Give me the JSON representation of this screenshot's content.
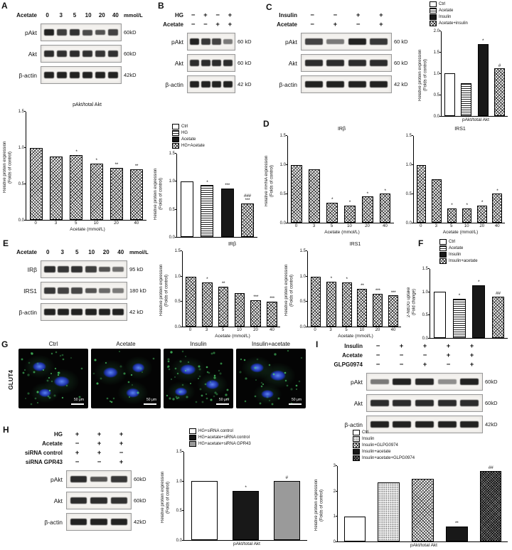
{
  "panels": {
    "a": {
      "label": "A"
    },
    "b": {
      "label": "B"
    },
    "c": {
      "label": "C"
    },
    "d": {
      "label": "D"
    },
    "e": {
      "label": "E"
    },
    "f": {
      "label": "F"
    },
    "g": {
      "label": "G"
    },
    "h": {
      "label": "H"
    },
    "i": {
      "label": "I"
    }
  },
  "blots": {
    "a": {
      "treatment": {
        "label": "Acetate",
        "values": [
          "0",
          "3",
          "5",
          "10",
          "20",
          "40"
        ],
        "unit": "mmol/L"
      },
      "rows": [
        {
          "name": "pAkt",
          "kd": "60kD",
          "bands": [
            0.95,
            0.82,
            0.88,
            0.76,
            0.72,
            0.8
          ]
        },
        {
          "name": "Akt",
          "kd": "60kD",
          "bands": [
            0.9,
            0.88,
            0.9,
            0.88,
            0.86,
            0.88
          ]
        },
        {
          "name": "β-actin",
          "kd": "42kD",
          "bands": [
            0.95,
            0.95,
            0.95,
            0.95,
            0.95,
            0.95
          ]
        }
      ]
    },
    "b": {
      "conditions": [
        {
          "label": "HG",
          "values": [
            "−",
            "+",
            "−",
            "+"
          ]
        },
        {
          "label": "Acetate",
          "values": [
            "−",
            "−",
            "+",
            "+"
          ]
        }
      ],
      "rows": [
        {
          "name": "pAkt",
          "kd": "60 kD",
          "bands": [
            0.95,
            0.85,
            0.8,
            0.55
          ]
        },
        {
          "name": "Akt",
          "kd": "60 kD",
          "bands": [
            0.9,
            0.9,
            0.9,
            0.9
          ]
        },
        {
          "name": "β-actin",
          "kd": "42 kD",
          "bands": [
            0.95,
            0.95,
            0.95,
            0.95
          ]
        }
      ]
    },
    "c": {
      "conditions": [
        {
          "label": "Insulin",
          "values": [
            "−",
            "−",
            "+",
            "+"
          ]
        },
        {
          "label": "Acetate",
          "values": [
            "−",
            "+",
            "−",
            "+"
          ]
        }
      ],
      "rows": [
        {
          "name": "pAkt",
          "kd": "60 kD",
          "bands": [
            0.8,
            0.55,
            0.95,
            0.85
          ]
        },
        {
          "name": "Akt",
          "kd": "60 kD",
          "bands": [
            0.9,
            0.9,
            0.9,
            0.9
          ]
        },
        {
          "name": "β-actin",
          "kd": "42 kD",
          "bands": [
            0.95,
            0.95,
            0.95,
            0.95
          ]
        }
      ]
    },
    "e": {
      "treatment": {
        "label": "Acetate",
        "values": [
          "0",
          "3",
          "5",
          "10",
          "20",
          "40"
        ],
        "unit": "mmol/L"
      },
      "rows": [
        {
          "name": "IRβ",
          "kd": "95 kD",
          "bands": [
            0.9,
            0.85,
            0.88,
            0.82,
            0.72,
            0.6
          ]
        },
        {
          "name": "IRS1",
          "kd": "180 kD",
          "bands": [
            0.85,
            0.8,
            0.78,
            0.72,
            0.62,
            0.55
          ]
        },
        {
          "name": "β-actin",
          "kd": "42 kD",
          "bands": [
            0.95,
            0.95,
            0.95,
            0.95,
            0.95,
            0.95
          ]
        }
      ]
    },
    "h": {
      "conditions": [
        {
          "label": "HG",
          "values": [
            "+",
            "+",
            "+"
          ]
        },
        {
          "label": "Acetate",
          "values": [
            "−",
            "+",
            "+"
          ]
        },
        {
          "label": "siRNA control",
          "values": [
            "+",
            "+",
            "−"
          ]
        },
        {
          "label": "siRNA GPR43",
          "values": [
            "−",
            "−",
            "+"
          ]
        }
      ],
      "rows": [
        {
          "name": "pAkt",
          "kd": "60kD",
          "bands": [
            0.9,
            0.72,
            0.85
          ]
        },
        {
          "name": "Akt",
          "kd": "60kD",
          "bands": [
            0.9,
            0.9,
            0.88
          ]
        },
        {
          "name": "β-actin",
          "kd": "42kD",
          "bands": [
            0.95,
            0.95,
            0.95
          ]
        }
      ]
    },
    "i": {
      "conditions": [
        {
          "label": "Insulin",
          "values": [
            "−",
            "+",
            "+",
            "+",
            "+"
          ]
        },
        {
          "label": "Acetate",
          "values": [
            "−",
            "−",
            "−",
            "+",
            "+"
          ]
        },
        {
          "label": "GLPG0974",
          "values": [
            "−",
            "−",
            "+",
            "−",
            "+"
          ]
        }
      ],
      "rows": [
        {
          "name": "pAkt",
          "kd": "60kD",
          "bands": [
            0.55,
            0.95,
            0.92,
            0.45,
            0.95
          ]
        },
        {
          "name": "Akt",
          "kd": "60kD",
          "bands": [
            0.9,
            0.9,
            0.9,
            0.9,
            0.9
          ]
        },
        {
          "name": "β-actin",
          "kd": "42kD",
          "bands": [
            0.95,
            0.95,
            0.95,
            0.95,
            0.95
          ]
        }
      ]
    }
  },
  "microscopy": {
    "row_label": "GLUT4",
    "scale_label": "50 μm",
    "images": [
      {
        "label": "Ctrl"
      },
      {
        "label": "Acetate"
      },
      {
        "label": "Insulin"
      },
      {
        "label": "Insulin+acetate"
      }
    ]
  },
  "chart_data": [
    {
      "id": "A",
      "type": "bar",
      "title": "pAkt/total Akt",
      "ylabel": "Relative protein expression\n(Folds of control)",
      "xlabel": "Acetate (mmol/L)",
      "categories": [
        "0",
        "3",
        "5",
        "10",
        "20",
        "40"
      ],
      "values": [
        1.0,
        0.88,
        0.9,
        0.78,
        0.72,
        0.7
      ],
      "sig": [
        "",
        "",
        "*",
        "*",
        "**",
        "**"
      ],
      "ylim": [
        0,
        1.5
      ],
      "yticks": [
        "0.0",
        "0.5",
        "1.0",
        "1.5"
      ],
      "pattern": "check"
    },
    {
      "id": "B",
      "type": "bar",
      "ylabel": "Relative protein expression\n(Folds of control)",
      "categories": [
        "Ctrl",
        "HG",
        "Acetate",
        "HG+Acetate"
      ],
      "values": [
        1.0,
        0.93,
        0.87,
        0.6
      ],
      "sig": [
        "",
        "*",
        "***",
        "###\n***"
      ],
      "ylim": [
        0,
        1.5
      ],
      "yticks": [
        "0.0",
        "0.5",
        "1.0",
        "1.5"
      ],
      "patterns": [
        "white",
        "hstripe",
        "black",
        "check"
      ],
      "legend": [
        {
          "label": "Ctrl",
          "pattern": "white"
        },
        {
          "label": "HG",
          "pattern": "hstripe"
        },
        {
          "label": "Acetate",
          "pattern": "black"
        },
        {
          "label": "HG+Acetate",
          "pattern": "check"
        }
      ],
      "show_xticks": false
    },
    {
      "id": "C",
      "type": "bar",
      "ylabel": "Relative protein expression\n(Folds of control)",
      "xlabel": "pAkt/total Akt",
      "categories": [
        "Ctrl",
        "Acetate",
        "Insulin",
        "Acetate+insulin"
      ],
      "values": [
        1.0,
        0.78,
        1.7,
        1.12
      ],
      "sig": [
        "",
        "",
        "*",
        "#"
      ],
      "ylim": [
        0,
        2
      ],
      "yticks": [
        "0.0",
        "0.5",
        "1.0",
        "1.5",
        "2.0"
      ],
      "patterns": [
        "white",
        "hstripe",
        "black",
        "check"
      ],
      "legend": [
        {
          "label": "Ctrl",
          "pattern": "white"
        },
        {
          "label": "Acetate",
          "pattern": "hstripe"
        },
        {
          "label": "Insulin",
          "pattern": "black"
        },
        {
          "label": "Acetate+insulin",
          "pattern": "check"
        }
      ],
      "show_xticks": false
    },
    {
      "id": "D1",
      "type": "bar",
      "title": "IRβ",
      "ylabel": "Relative mRNA expression\n(Folds of control)",
      "xlabel": "Acetate (mmol/L)",
      "categories": [
        "0",
        "3",
        "5",
        "10",
        "20",
        "40"
      ],
      "values": [
        1.0,
        0.93,
        0.35,
        0.3,
        0.45,
        0.5
      ],
      "sig": [
        "",
        "",
        "*",
        "*",
        "*",
        "*"
      ],
      "ylim": [
        0,
        1.5
      ],
      "yticks": [
        "0.0",
        "0.5",
        "1.0",
        "1.5"
      ],
      "pattern": "check"
    },
    {
      "id": "D2",
      "type": "bar",
      "title": "IRS1",
      "xlabel": "Acetate (mmol/L)",
      "categories": [
        "0",
        "3",
        "5",
        "10",
        "20",
        "40"
      ],
      "values": [
        1.0,
        0.75,
        0.25,
        0.25,
        0.3,
        0.5
      ],
      "sig": [
        "",
        "",
        "*",
        "*",
        "*",
        "*"
      ],
      "ylim": [
        0,
        1.5
      ],
      "yticks": [
        "0.0",
        "0.5",
        "1.0",
        "1.5"
      ],
      "pattern": "check"
    },
    {
      "id": "E1",
      "type": "bar",
      "title": "IRβ",
      "ylabel": "Relative protein expression\n(Folds of control)",
      "xlabel": "Acetate (mmol/L)",
      "categories": [
        "0",
        "3",
        "5",
        "10",
        "20",
        "40"
      ],
      "values": [
        1.0,
        0.88,
        0.8,
        0.66,
        0.52,
        0.5
      ],
      "sig": [
        "",
        "*",
        "**",
        "",
        "***",
        "***"
      ],
      "ylim": [
        0,
        1.5
      ],
      "yticks": [
        "0.0",
        "0.5",
        "1.0",
        "1.5"
      ],
      "pattern": "check"
    },
    {
      "id": "E2",
      "type": "bar",
      "title": "IRS1",
      "ylabel": "Relative protein expression\n(Folds of control)",
      "xlabel": "Acetate (mmol/L)",
      "categories": [
        "0",
        "3",
        "5",
        "10",
        "20",
        "40"
      ],
      "values": [
        1.0,
        0.9,
        0.88,
        0.75,
        0.65,
        0.62
      ],
      "sig": [
        "",
        "*",
        "*",
        "**",
        "***",
        "***"
      ],
      "ylim": [
        0,
        1.5
      ],
      "yticks": [
        "0.0",
        "0.5",
        "1.0",
        "1.5"
      ],
      "pattern": "check"
    },
    {
      "id": "F",
      "type": "bar",
      "ylabel": "2-NBDG uptake\n(Fold change)",
      "categories": [
        "Ctrl",
        "Acetate",
        "Insulin",
        "Insulin+acetate"
      ],
      "values": [
        1.0,
        0.85,
        1.15,
        0.9
      ],
      "sig": [
        "",
        "*",
        "*",
        "##"
      ],
      "ylim": [
        0,
        1.5
      ],
      "yticks": [
        "0.0",
        "0.5",
        "1.0",
        "1.5"
      ],
      "patterns": [
        "white",
        "hstripe",
        "black",
        "check"
      ],
      "legend": [
        {
          "label": "Ctrl",
          "pattern": "white"
        },
        {
          "label": "Acetate",
          "pattern": "hstripe"
        },
        {
          "label": "Insulin",
          "pattern": "black"
        },
        {
          "label": "Insulin+acetate",
          "pattern": "check"
        }
      ],
      "show_xticks": false
    },
    {
      "id": "H",
      "type": "bar",
      "ylabel": "Relative protein expression\n(Folds of control)",
      "xlabel": "pAkt/total Akt",
      "categories": [
        "HG+siRNA control",
        "HG+acetate+siRNA control",
        "HG+acetate+siRNA GPR43"
      ],
      "values": [
        1.0,
        0.84,
        1.0
      ],
      "sig": [
        "",
        "*",
        "#"
      ],
      "ylim": [
        0,
        1.5
      ],
      "yticks": [
        "0.0",
        "0.5",
        "1.0",
        "1.5"
      ],
      "patterns": [
        "white",
        "black",
        "gray"
      ],
      "legend": [
        {
          "label": "HG+siRNA control",
          "pattern": "white"
        },
        {
          "label": "HG+acetate+siRNA control",
          "pattern": "black"
        },
        {
          "label": "HG+acetate+siRNA GPR43",
          "pattern": "gray"
        }
      ],
      "show_xticks": false
    },
    {
      "id": "I",
      "type": "bar",
      "ylabel": "Relative protein expression\n(Folds of control)",
      "xlabel": "pAkt/total Akt",
      "categories": [
        "Ctrl",
        "Insulin",
        "Insulin+GLPG0974",
        "Insulin+acetate",
        "Insulin+acetate+GLPG0974"
      ],
      "values": [
        1.0,
        2.35,
        2.5,
        0.6,
        2.8
      ],
      "sig": [
        "",
        "",
        "",
        "**",
        "##"
      ],
      "ylim": [
        0,
        3
      ],
      "yticks": [
        "0",
        "1",
        "2",
        "3"
      ],
      "patterns": [
        "white",
        "dots",
        "check",
        "black",
        "darkcheck"
      ],
      "legend": [
        {
          "label": "Ctrl",
          "pattern": "white"
        },
        {
          "label": "Insulin",
          "pattern": "dots"
        },
        {
          "label": "Insulin+GLPG0974",
          "pattern": "check"
        },
        {
          "label": "Insulin+acetate",
          "pattern": "black"
        },
        {
          "label": "Insulin+acetate+GLPG0974",
          "pattern": "darkcheck"
        }
      ],
      "show_xticks": false
    }
  ]
}
